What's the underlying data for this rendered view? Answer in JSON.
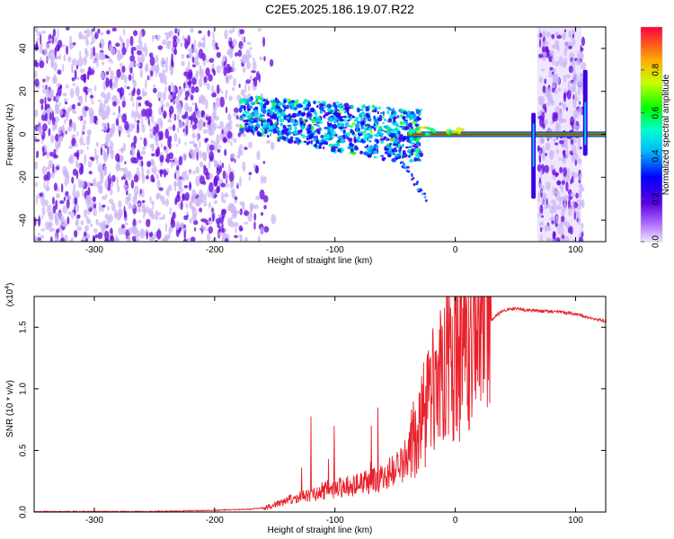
{
  "figure_title": "C2E5.2025.186.19.07.R22",
  "colors": {
    "waterfall_track": "#cc2222",
    "snr_line": "#e8202a",
    "axes": "#000000",
    "background": "#ffffff",
    "noise_light": "#cbb5f5",
    "noise_dark": "#6a10e0"
  },
  "chart_data": [
    {
      "type": "heatmap",
      "xlabel": "Height of straight line (km)",
      "ylabel": "Frequency (Hz)",
      "xlim": [
        -350,
        125
      ],
      "ylim": [
        -50,
        50
      ],
      "xticks": [
        -300,
        -200,
        -100,
        0,
        100
      ],
      "yticks": [
        -40,
        -20,
        0,
        20,
        40
      ],
      "grid": false,
      "colorbar": {
        "label": "Normalized spectral amplitude",
        "range": [
          0,
          1
        ],
        "ticks": [
          0.0,
          0.2,
          0.4,
          0.6,
          0.8
        ],
        "colormap": "rainbow (purple-blue-cyan-green-yellow-orange-red)"
      },
      "features": {
        "noise_region_x": [
          -350,
          -160
        ],
        "signal_onset_x": -180,
        "carrier_track": [
          {
            "x": -180,
            "y": 11
          },
          {
            "x": -150,
            "y": 8
          },
          {
            "x": -120,
            "y": 6
          },
          {
            "x": -100,
            "y": 4
          },
          {
            "x": -80,
            "y": 3
          },
          {
            "x": -60,
            "y": 1
          },
          {
            "x": -40,
            "y": 0
          },
          {
            "x": -20,
            "y": 0
          },
          {
            "x": 0,
            "y": 0
          },
          {
            "x": 60,
            "y": 0
          },
          {
            "x": 125,
            "y": 0
          }
        ],
        "spike_1_x": 65,
        "spike_2_x": 108,
        "second_noise_band_x": [
          68,
          105
        ]
      }
    },
    {
      "type": "line",
      "xlabel": "Height of straight line (km)",
      "ylabel": "SNR (10 * v/v)",
      "y_scale_label": "(x10",
      "y_scale_exponent": "4",
      "xlim": [
        -350,
        125
      ],
      "ylim": [
        0,
        1.75
      ],
      "xticks": [
        -300,
        -200,
        -100,
        0,
        100
      ],
      "yticks": [
        "0.0",
        "0.5",
        "1.0",
        "1.5"
      ],
      "grid": false,
      "series": [
        {
          "x": [
            -350,
            -300,
            -250,
            -200,
            -170,
            -160,
            -150,
            -140,
            -130,
            -120,
            -110,
            -100,
            -90,
            -80,
            -70,
            -60,
            -50,
            -40,
            -30,
            -25,
            -20,
            -15,
            -10,
            -5,
            0,
            5,
            10,
            15,
            20,
            25,
            30,
            35,
            40,
            50,
            60,
            70,
            80,
            90,
            100,
            110,
            120,
            125
          ],
          "values": [
            0.0,
            0.0,
            0.0,
            0.01,
            0.02,
            0.03,
            0.05,
            0.08,
            0.1,
            0.12,
            0.15,
            0.17,
            0.18,
            0.2,
            0.22,
            0.24,
            0.3,
            0.38,
            0.55,
            0.65,
            0.75,
            0.85,
            0.95,
            1.05,
            1.15,
            1.2,
            1.28,
            1.35,
            1.42,
            1.5,
            1.56,
            1.6,
            1.64,
            1.65,
            1.64,
            1.63,
            1.63,
            1.62,
            1.61,
            1.58,
            1.56,
            1.55
          ]
        }
      ]
    }
  ]
}
